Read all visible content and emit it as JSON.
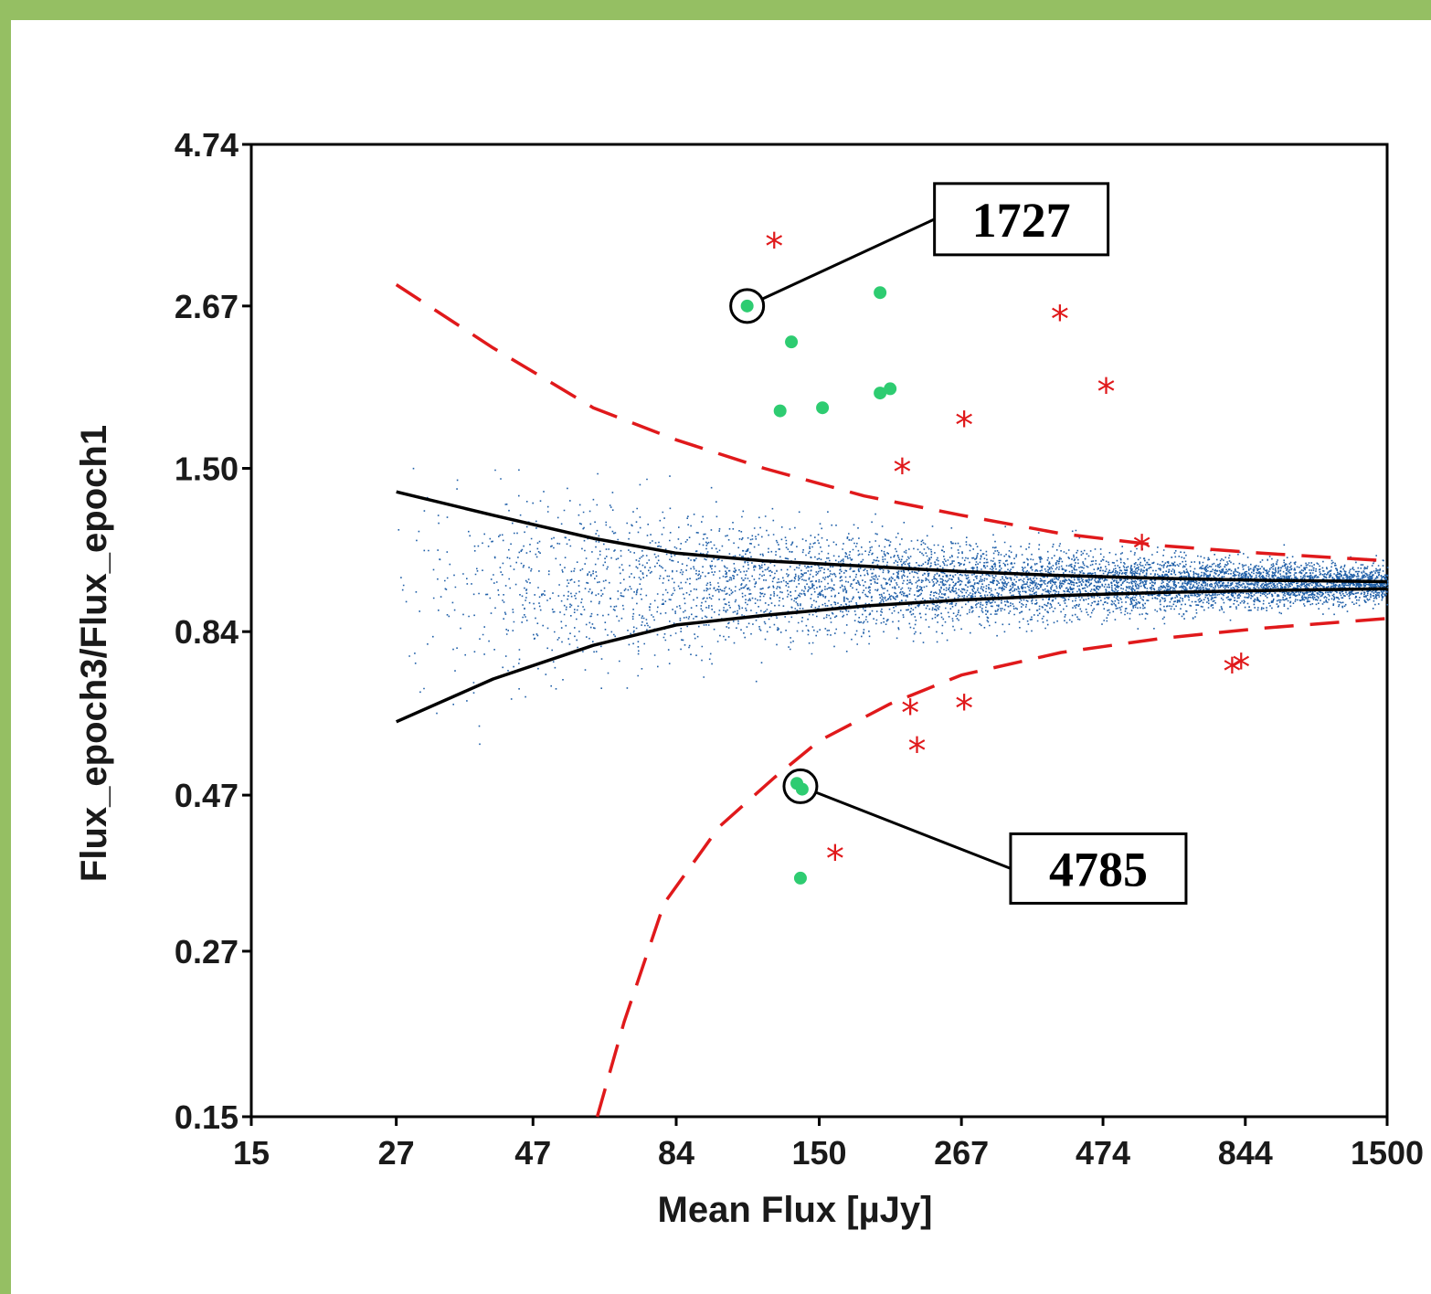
{
  "colors": {
    "frame": "#95bf63",
    "scatter": "#1f5fa8",
    "variable_points": "#2ecc71",
    "stars": "#e0191b",
    "threshold_dashed": "#e0191b",
    "envelope": "#000000"
  },
  "chart_data": {
    "type": "scatter",
    "xlabel": "Mean Flux [µJy]",
    "ylabel": "Flux_epoch3/Flux_epoch1",
    "x_scale": "log",
    "y_scale": "log",
    "xlim": [
      15,
      1500
    ],
    "ylim": [
      0.15,
      4.74
    ],
    "x_ticks": [
      "15",
      "27",
      "47",
      "84",
      "150",
      "267",
      "474",
      "844",
      "1500"
    ],
    "y_ticks": [
      "0.15",
      "0.27",
      "0.47",
      "0.84",
      "1.50",
      "2.67",
      "4.74"
    ],
    "x_tick_values": [
      15,
      27,
      47,
      84,
      150,
      267,
      474,
      844,
      1500
    ],
    "y_tick_values": [
      0.15,
      0.27,
      0.47,
      0.84,
      1.5,
      2.67,
      4.74
    ],
    "grid": false,
    "scatter_cloud": {
      "description_free": true,
      "count": 6500,
      "x_range": [
        27,
        1500
      ],
      "center_y": 1.0
    },
    "variable_points": [
      {
        "x": 112,
        "y": 2.67
      },
      {
        "x": 192,
        "y": 2.8
      },
      {
        "x": 134,
        "y": 2.35
      },
      {
        "x": 128,
        "y": 1.84
      },
      {
        "x": 152,
        "y": 1.86
      },
      {
        "x": 192,
        "y": 1.96
      },
      {
        "x": 200,
        "y": 1.99
      },
      {
        "x": 137,
        "y": 0.49
      },
      {
        "x": 140,
        "y": 0.48
      },
      {
        "x": 139,
        "y": 0.35
      }
    ],
    "star_points": [
      {
        "x": 125,
        "y": 3.3
      },
      {
        "x": 398,
        "y": 2.55
      },
      {
        "x": 480,
        "y": 1.97
      },
      {
        "x": 270,
        "y": 1.75
      },
      {
        "x": 210,
        "y": 1.48
      },
      {
        "x": 555,
        "y": 1.13
      },
      {
        "x": 800,
        "y": 0.73
      },
      {
        "x": 830,
        "y": 0.74
      },
      {
        "x": 217,
        "y": 0.63
      },
      {
        "x": 270,
        "y": 0.64
      },
      {
        "x": 223,
        "y": 0.55
      },
      {
        "x": 160,
        "y": 0.375
      }
    ],
    "envelope_upper": {
      "x": [
        27,
        40,
        60,
        84,
        120,
        180,
        267,
        400,
        600,
        900,
        1500
      ],
      "y": [
        1.38,
        1.27,
        1.17,
        1.11,
        1.08,
        1.06,
        1.04,
        1.025,
        1.015,
        1.008,
        1.003
      ]
    },
    "envelope_lower": {
      "x": [
        27,
        40,
        60,
        84,
        120,
        180,
        267,
        400,
        600,
        900,
        1500
      ],
      "y": [
        0.61,
        0.71,
        0.8,
        0.86,
        0.89,
        0.92,
        0.94,
        0.955,
        0.965,
        0.972,
        0.978
      ]
    },
    "threshold_upper": {
      "x": [
        27,
        40,
        60,
        84,
        120,
        180,
        267,
        400,
        600,
        900,
        1500
      ],
      "y": [
        2.88,
        2.3,
        1.86,
        1.66,
        1.5,
        1.36,
        1.27,
        1.19,
        1.14,
        1.11,
        1.08
      ]
    },
    "threshold_lower": {
      "x": [
        61,
        68,
        80,
        100,
        125,
        150,
        200,
        267,
        400,
        600,
        900,
        1500
      ],
      "y": [
        0.15,
        0.21,
        0.32,
        0.42,
        0.5,
        0.57,
        0.65,
        0.72,
        0.78,
        0.82,
        0.85,
        0.88
      ]
    },
    "annotations": [
      {
        "label": "1727",
        "x": 112,
        "y": 2.67
      },
      {
        "label": "4785",
        "x": 139,
        "y": 0.485
      }
    ]
  }
}
